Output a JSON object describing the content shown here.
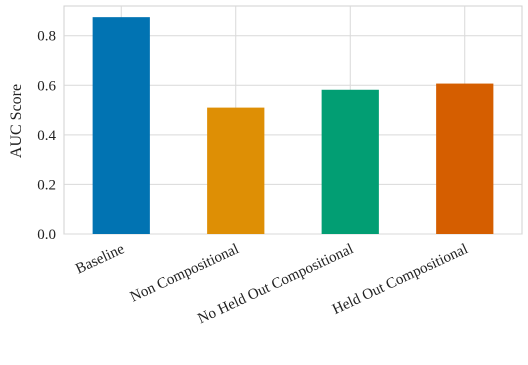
{
  "chart_data": {
    "type": "bar",
    "title": "",
    "xlabel": "",
    "ylabel": "AUC Score",
    "categories": [
      "Baseline",
      "Non Compositional",
      "No Held Out Compositional",
      "Held Out Compositional"
    ],
    "values": [
      0.875,
      0.51,
      0.582,
      0.607
    ],
    "colors": [
      "#0173b2",
      "#de8f05",
      "#029e73",
      "#d55e00"
    ],
    "ylim": [
      0,
      0.92
    ],
    "yticks": [
      0.0,
      0.2,
      0.4,
      0.6,
      0.8
    ],
    "ytick_labels": [
      "0.0",
      "0.2",
      "0.4",
      "0.6",
      "0.8"
    ],
    "grid": true,
    "legend": "none"
  }
}
